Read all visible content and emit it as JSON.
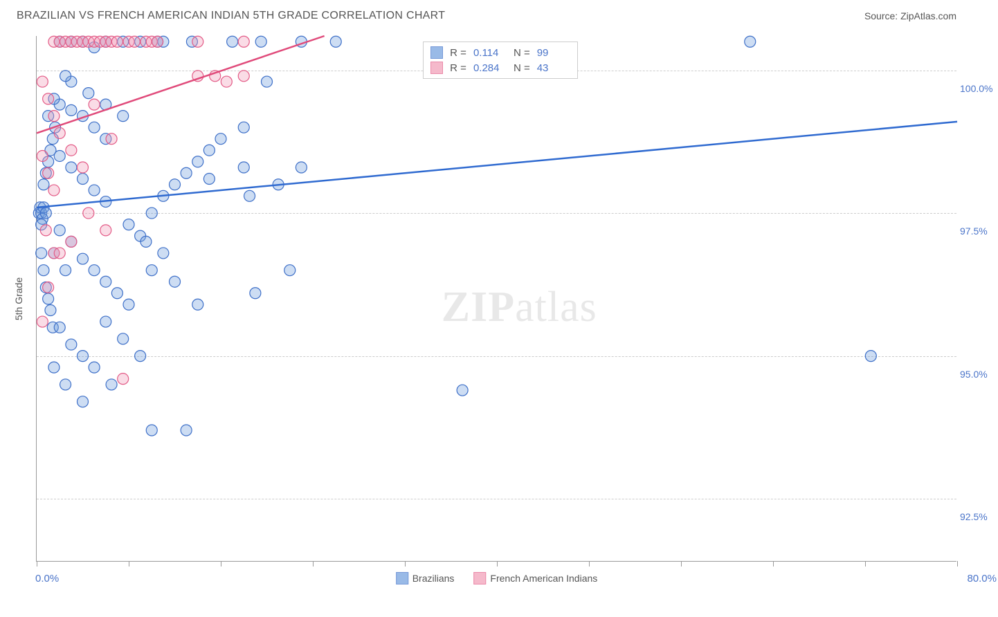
{
  "header": {
    "title": "BRAZILIAN VS FRENCH AMERICAN INDIAN 5TH GRADE CORRELATION CHART",
    "source_label": "Source: ",
    "source_value": "ZipAtlas.com"
  },
  "watermark": {
    "prefix": "ZIP",
    "suffix": "atlas"
  },
  "chart": {
    "type": "scatter",
    "ylabel": "5th Grade",
    "xlim": [
      0,
      80
    ],
    "ylim": [
      91.4,
      100.6
    ],
    "xtick_positions": [
      0,
      8,
      16,
      24,
      32,
      40,
      48,
      56,
      64,
      72,
      80
    ],
    "xaxis_min_label": "0.0%",
    "xaxis_max_label": "80.0%",
    "yticks": [
      {
        "value": 100.0,
        "label": "100.0%"
      },
      {
        "value": 97.5,
        "label": "97.5%"
      },
      {
        "value": 95.0,
        "label": "95.0%"
      },
      {
        "value": 92.5,
        "label": "92.5%"
      }
    ],
    "grid_color": "#cccccc",
    "axis_color": "#999999",
    "background_color": "#ffffff",
    "marker_radius": 8,
    "marker_fill_opacity": 0.35,
    "marker_stroke_width": 1.2,
    "series": [
      {
        "name": "Brazilians",
        "color_fill": "#6f9ede",
        "color_stroke": "#3d6fc8",
        "regression": {
          "x1": 0,
          "y1": 97.6,
          "x2": 80,
          "y2": 99.1,
          "color": "#2f6ad0",
          "width": 2.5
        },
        "stats": {
          "R": "0.114",
          "N": "99"
        },
        "points": [
          [
            0.2,
            97.5
          ],
          [
            0.3,
            97.6
          ],
          [
            0.4,
            97.5
          ],
          [
            0.5,
            97.4
          ],
          [
            0.4,
            97.3
          ],
          [
            0.6,
            97.6
          ],
          [
            0.8,
            97.5
          ],
          [
            0.6,
            98.0
          ],
          [
            0.8,
            98.2
          ],
          [
            1.0,
            98.4
          ],
          [
            1.2,
            98.6
          ],
          [
            1.4,
            98.8
          ],
          [
            1.6,
            99.0
          ],
          [
            0.4,
            96.8
          ],
          [
            0.6,
            96.5
          ],
          [
            0.8,
            96.2
          ],
          [
            1.0,
            96.0
          ],
          [
            1.2,
            95.8
          ],
          [
            1.4,
            95.5
          ],
          [
            2.0,
            100.5
          ],
          [
            3.0,
            100.5
          ],
          [
            4.0,
            100.5
          ],
          [
            5.0,
            100.4
          ],
          [
            6.0,
            100.5
          ],
          [
            7.5,
            100.5
          ],
          [
            11.0,
            100.5
          ],
          [
            13.5,
            100.5
          ],
          [
            17.0,
            100.5
          ],
          [
            19.5,
            100.5
          ],
          [
            23.0,
            100.5
          ],
          [
            26.0,
            100.5
          ],
          [
            2.0,
            99.4
          ],
          [
            3.0,
            99.3
          ],
          [
            4.0,
            99.2
          ],
          [
            5.0,
            99.0
          ],
          [
            6.0,
            98.8
          ],
          [
            2.0,
            98.5
          ],
          [
            3.0,
            98.3
          ],
          [
            4.0,
            98.1
          ],
          [
            5.0,
            97.9
          ],
          [
            6.0,
            97.7
          ],
          [
            2.0,
            97.2
          ],
          [
            3.0,
            97.0
          ],
          [
            4.0,
            96.7
          ],
          [
            5.0,
            96.5
          ],
          [
            6.0,
            96.3
          ],
          [
            7.0,
            96.1
          ],
          [
            8.0,
            95.9
          ],
          [
            9.0,
            97.1
          ],
          [
            10.0,
            97.5
          ],
          [
            11.0,
            97.8
          ],
          [
            12.0,
            98.0
          ],
          [
            13.0,
            98.2
          ],
          [
            14.0,
            98.4
          ],
          [
            15.0,
            98.6
          ],
          [
            16.0,
            98.8
          ],
          [
            18.0,
            99.0
          ],
          [
            10.0,
            96.5
          ],
          [
            12.0,
            96.3
          ],
          [
            14.0,
            95.9
          ],
          [
            2.0,
            95.5
          ],
          [
            3.0,
            95.2
          ],
          [
            4.0,
            95.0
          ],
          [
            5.0,
            94.8
          ],
          [
            6.5,
            94.5
          ],
          [
            8.0,
            97.3
          ],
          [
            9.5,
            97.0
          ],
          [
            11.0,
            96.8
          ],
          [
            3.0,
            99.8
          ],
          [
            4.5,
            99.6
          ],
          [
            6.0,
            99.4
          ],
          [
            7.5,
            99.2
          ],
          [
            9.0,
            100.5
          ],
          [
            10.5,
            100.5
          ],
          [
            1.5,
            96.8
          ],
          [
            2.5,
            96.5
          ],
          [
            15.0,
            98.1
          ],
          [
            18.0,
            98.3
          ],
          [
            19.0,
            96.1
          ],
          [
            18.5,
            97.8
          ],
          [
            21.0,
            98.0
          ],
          [
            20.0,
            99.8
          ],
          [
            22.0,
            96.5
          ],
          [
            23.0,
            98.3
          ],
          [
            10.0,
            93.7
          ],
          [
            13.0,
            93.7
          ],
          [
            1.5,
            94.8
          ],
          [
            2.5,
            94.5
          ],
          [
            4.0,
            94.2
          ],
          [
            6.0,
            95.6
          ],
          [
            7.5,
            95.3
          ],
          [
            9.0,
            95.0
          ],
          [
            37.0,
            94.4
          ],
          [
            62.0,
            100.5
          ],
          [
            72.5,
            95.0
          ],
          [
            1.0,
            99.2
          ],
          [
            1.5,
            99.5
          ],
          [
            2.5,
            99.9
          ]
        ]
      },
      {
        "name": "French American Indians",
        "color_fill": "#f29cb6",
        "color_stroke": "#e35a86",
        "regression": {
          "x1": 0,
          "y1": 98.9,
          "x2": 25,
          "y2": 100.6,
          "color": "#e04a7a",
          "width": 2.5
        },
        "stats": {
          "R": "0.284",
          "N": "43"
        },
        "points": [
          [
            1.5,
            100.5
          ],
          [
            2.0,
            100.5
          ],
          [
            2.5,
            100.5
          ],
          [
            3.0,
            100.5
          ],
          [
            3.5,
            100.5
          ],
          [
            4.0,
            100.5
          ],
          [
            4.5,
            100.5
          ],
          [
            5.0,
            100.5
          ],
          [
            5.5,
            100.5
          ],
          [
            6.0,
            100.5
          ],
          [
            6.5,
            100.5
          ],
          [
            7.0,
            100.5
          ],
          [
            8.0,
            100.5
          ],
          [
            8.5,
            100.5
          ],
          [
            9.5,
            100.5
          ],
          [
            10.0,
            100.5
          ],
          [
            10.5,
            100.5
          ],
          [
            14.0,
            100.5
          ],
          [
            18.0,
            100.5
          ],
          [
            0.5,
            99.8
          ],
          [
            1.0,
            99.5
          ],
          [
            1.5,
            99.2
          ],
          [
            2.0,
            98.9
          ],
          [
            0.5,
            98.5
          ],
          [
            1.0,
            98.2
          ],
          [
            1.5,
            97.9
          ],
          [
            14.0,
            99.9
          ],
          [
            15.5,
            99.9
          ],
          [
            16.5,
            99.8
          ],
          [
            18.0,
            99.9
          ],
          [
            0.8,
            97.2
          ],
          [
            1.5,
            96.8
          ],
          [
            3.0,
            98.6
          ],
          [
            4.0,
            98.3
          ],
          [
            0.5,
            95.6
          ],
          [
            1.0,
            96.2
          ],
          [
            2.0,
            96.8
          ],
          [
            4.5,
            97.5
          ],
          [
            6.0,
            97.2
          ],
          [
            7.5,
            94.6
          ],
          [
            3.0,
            97.0
          ],
          [
            5.0,
            99.4
          ],
          [
            6.5,
            98.8
          ]
        ]
      }
    ],
    "stats_box": {
      "R_label": "R =",
      "N_label": "N ="
    }
  }
}
